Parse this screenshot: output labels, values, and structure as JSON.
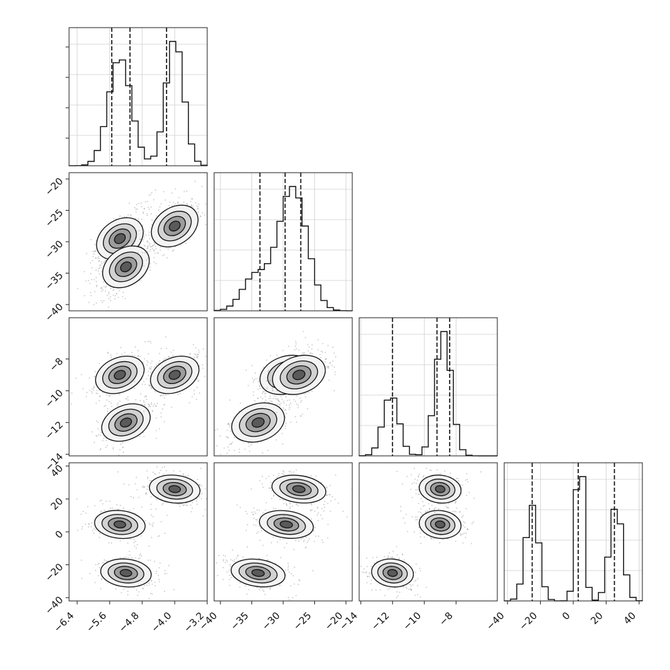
{
  "chart_data": {
    "type": "corner",
    "parameters": [
      {
        "range": [
          -6.6,
          -3.2
        ],
        "ticks": [
          -6.4,
          -5.6,
          -4.8,
          -4.0,
          -3.2
        ],
        "tick_labels": [
          "−6.4",
          "−5.6",
          "−4.8",
          "−4.0",
          "−3.2"
        ],
        "quantiles": [
          -5.55,
          -5.1,
          -4.2
        ],
        "modes": [
          {
            "mean": -5.35,
            "sd": 0.28,
            "w": 0.52
          },
          {
            "mean": -4.0,
            "sd": 0.22,
            "w": 0.48
          }
        ]
      },
      {
        "range": [
          -41,
          -19
        ],
        "ticks": [
          -40,
          -35,
          -30,
          -25,
          -20
        ],
        "tick_labels": [
          "−40",
          "−35",
          "−30",
          "−25",
          "−20"
        ],
        "quantiles": [
          -33.7,
          -29.7,
          -27.2
        ],
        "modes": [
          {
            "mean": -34.5,
            "sd": 2.0,
            "w": 0.2
          },
          {
            "mean": -29.5,
            "sd": 2.0,
            "w": 0.4
          },
          {
            "mean": -27.5,
            "sd": 2.0,
            "w": 0.4
          }
        ]
      },
      {
        "range": [
          -14.1,
          -5.4
        ],
        "ticks": [
          -14,
          -12,
          -10,
          -8
        ],
        "tick_labels": [
          "−14",
          "−12",
          "−10",
          "−8"
        ],
        "quantiles": [
          -12.0,
          -9.2,
          -8.4
        ],
        "modes": [
          {
            "mean": -12.1,
            "sd": 0.5,
            "w": 0.33
          },
          {
            "mean": -8.8,
            "sd": 0.5,
            "w": 0.67
          }
        ]
      },
      {
        "range": [
          -42,
          42
        ],
        "ticks": [
          -40,
          -20,
          0,
          20,
          40
        ],
        "tick_labels": [
          "−40",
          "−20",
          "0",
          "20",
          "40"
        ],
        "quantiles": [
          -25,
          3,
          25
        ],
        "modes": [
          {
            "mean": -25,
            "sd": 4,
            "w": 0.33
          },
          {
            "mean": 4,
            "sd": 2.5,
            "w": 0.34
          },
          {
            "mean": 26,
            "sd": 4,
            "w": 0.33
          }
        ]
      }
    ],
    "clusters": [
      {
        "center": [
          -5.35,
          -29.5,
          -9.0,
          4.5
        ],
        "weight": 0.34
      },
      {
        "center": [
          -5.2,
          -34.0,
          -12.0,
          -25.0
        ],
        "weight": 0.33
      },
      {
        "center": [
          -4.0,
          -27.5,
          -9.0,
          26.0
        ],
        "weight": 0.33
      }
    ]
  }
}
